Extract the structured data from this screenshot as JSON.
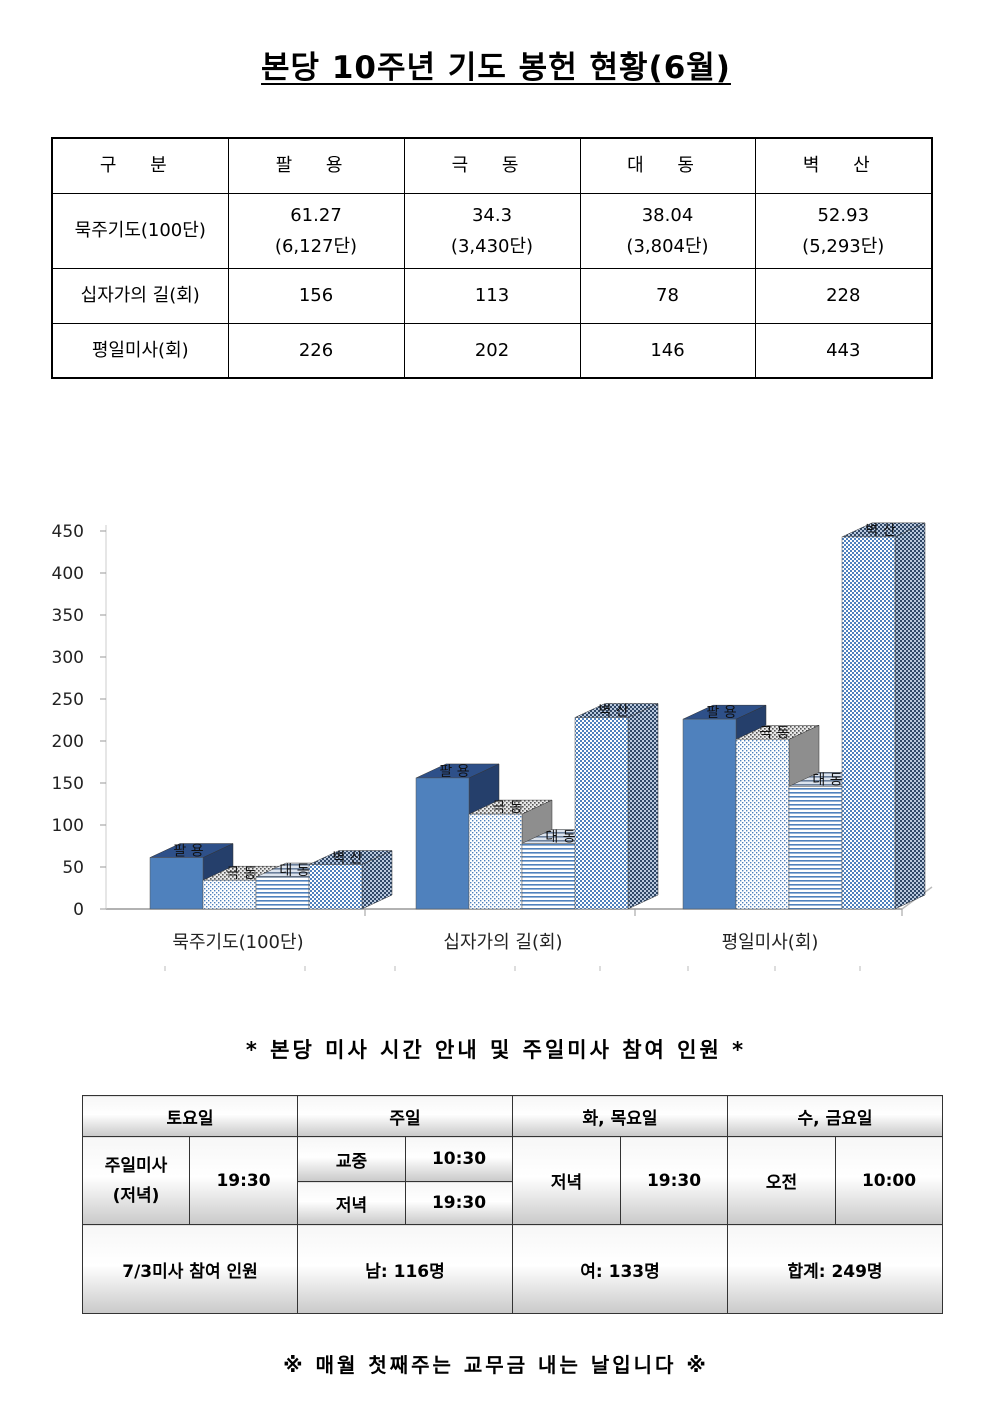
{
  "title": "본당 10주년 기도 봉헌 현황(6월)",
  "stats_table": {
    "header": [
      "구 분",
      "팔 용",
      "극 동",
      "대 동",
      "벽 산"
    ],
    "rows": [
      {
        "label": "묵주기도(100단)",
        "cells": [
          {
            "main": "61.27",
            "sub": "(6,127단)"
          },
          {
            "main": "34.3",
            "sub": "(3,430단)"
          },
          {
            "main": "38.04",
            "sub": "(3,804단)"
          },
          {
            "main": "52.93",
            "sub": "(5,293단)"
          }
        ]
      },
      {
        "label": "십자가의 길(회)",
        "cells": [
          "156",
          "113",
          "78",
          "228"
        ]
      },
      {
        "label": "평일미사(회)",
        "cells": [
          "226",
          "202",
          "146",
          "443"
        ]
      }
    ]
  },
  "chart_data": {
    "type": "bar",
    "style": "3d-clustered-column",
    "categories": [
      "묵주기도(100단)",
      "십자가의 길(회)",
      "평일미사(회)"
    ],
    "series": [
      {
        "name": "팔 용",
        "values": [
          61.27,
          156,
          226
        ],
        "color": "#4f81bd",
        "pattern": "solid"
      },
      {
        "name": "극 동",
        "values": [
          34.3,
          113,
          202
        ],
        "color": "#8fb0d8",
        "pattern": "dots"
      },
      {
        "name": "대 동",
        "values": [
          38.04,
          78,
          146
        ],
        "color": "#4f81bd",
        "pattern": "horizontal-lines"
      },
      {
        "name": "벽 산",
        "values": [
          52.93,
          228,
          443
        ],
        "color": "#4f81bd",
        "pattern": "checker"
      }
    ],
    "yticks": [
      "0",
      "50",
      "100",
      "150",
      "200",
      "250",
      "300",
      "350",
      "400",
      "450"
    ],
    "ylim": [
      0,
      450
    ],
    "grid": false,
    "legend": "none",
    "data_labels": "series name above each bar"
  },
  "schedule": {
    "title": "* 본당 미사 시간 안내 및 주일미사 참여 인원 *",
    "headers": [
      "토요일",
      "주일",
      "화, 목요일",
      "수, 금요일"
    ],
    "saturday": {
      "label": "주일미사\n(저녁)",
      "time": "19:30"
    },
    "sunday": [
      {
        "label": "교중",
        "time": "10:30"
      },
      {
        "label": "저녁",
        "time": "19:30"
      }
    ],
    "tue_thu": {
      "label": "저녁",
      "time": "19:30"
    },
    "wed_fri": {
      "label": "오전",
      "time": "10:00"
    },
    "attendance": {
      "label": "7/3미사 참여 인원",
      "male": "남: 116명",
      "female": "여: 133명",
      "total": "합계: 249명"
    }
  },
  "footer": "※ 매월 첫째주는 교무금 내는 날입니다 ※"
}
